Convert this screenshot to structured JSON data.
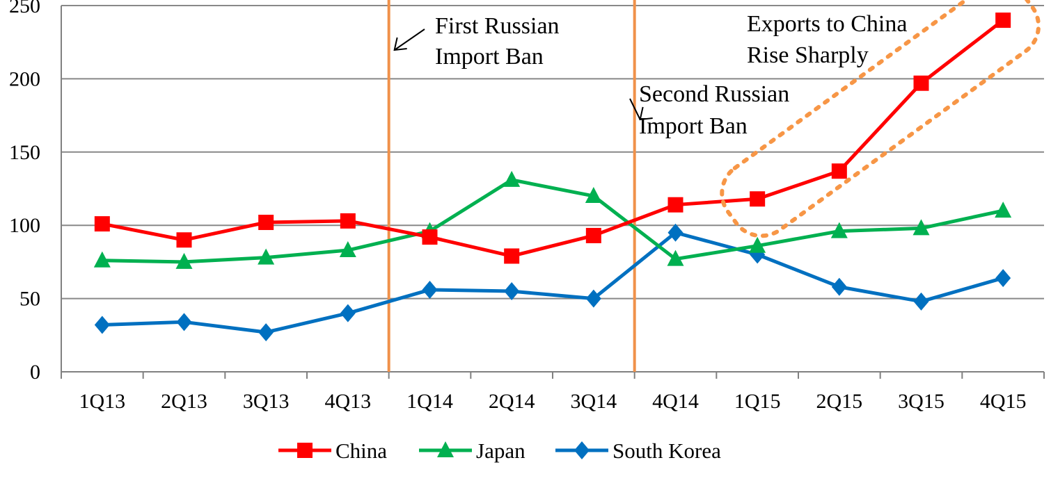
{
  "chart_data": {
    "type": "line",
    "categories": [
      "1Q13",
      "2Q13",
      "3Q13",
      "4Q13",
      "1Q14",
      "2Q14",
      "3Q14",
      "4Q14",
      "1Q15",
      "2Q15",
      "3Q15",
      "4Q15"
    ],
    "ylim": [
      0,
      250
    ],
    "yticks": [
      0,
      50,
      100,
      150,
      200,
      250
    ],
    "grid": true,
    "legend_position": "bottom",
    "series": [
      {
        "name": "China",
        "marker": "square",
        "color": "#ff0000",
        "values": [
          101,
          90,
          102,
          103,
          92,
          79,
          93,
          114,
          118,
          137,
          197,
          240
        ]
      },
      {
        "name": "Japan",
        "marker": "triangle",
        "color": "#00b050",
        "values": [
          76,
          75,
          78,
          83,
          96,
          131,
          120,
          77,
          86,
          96,
          98,
          110
        ]
      },
      {
        "name": "South Korea",
        "marker": "diamond",
        "color": "#0070c0",
        "values": [
          32,
          34,
          27,
          40,
          56,
          55,
          50,
          95,
          80,
          58,
          48,
          64
        ]
      }
    ],
    "event_lines": [
      {
        "after_category": "4Q13",
        "label_lines": [
          "First Russian",
          "Import Ban"
        ]
      },
      {
        "after_category": "3Q14",
        "label_lines": [
          "Second Russian",
          "Import Ban"
        ]
      }
    ],
    "callout": {
      "label_lines": [
        "Exports to China",
        "Rise Sharply"
      ],
      "from_category": "1Q15",
      "to_category": "4Q15"
    },
    "colors": {
      "grid": "#888888",
      "axis": "#808080",
      "event_line": "#f0914a",
      "callout_border": "#f79646"
    }
  }
}
